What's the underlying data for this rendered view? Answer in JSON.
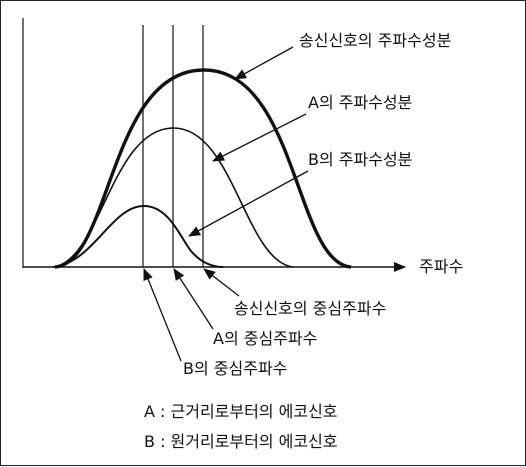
{
  "labels": {
    "tx_spectrum": "송신신호의 주파수성분",
    "a_spectrum": "A의 주파수성분",
    "b_spectrum": "B의 주파수성분",
    "freq_axis": "주파수",
    "tx_center": "송신신호의 중심주파수",
    "a_center": "A의 중심주파수",
    "b_center": "B의 중심주파수"
  },
  "legend": {
    "a": "A : 근거리로부터의 에코신호",
    "b": "B : 원거리로부터의 에코신호"
  }
}
